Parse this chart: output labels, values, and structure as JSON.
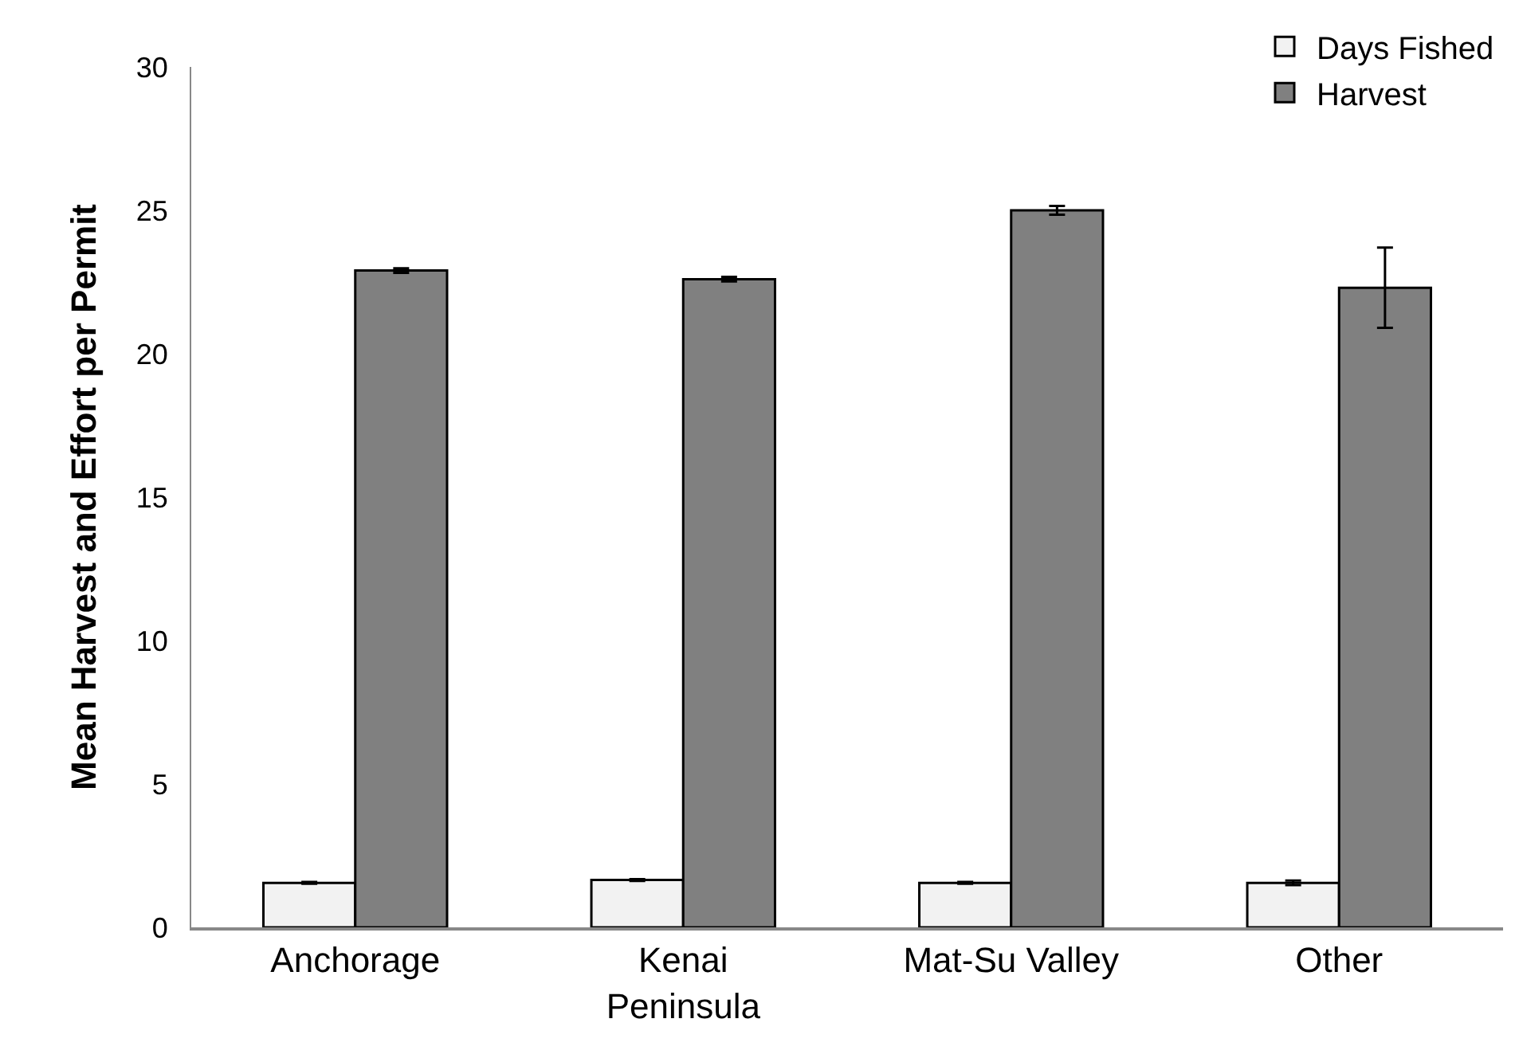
{
  "chart_data": {
    "type": "bar",
    "ylabel": "Mean Harvest and Effort per Permit",
    "categories": [
      "Anchorage",
      "Kenai Peninsula",
      "Mat-Su Valley",
      "Other"
    ],
    "series": [
      {
        "name": "Days Fished",
        "color": "#f2f2f2",
        "values": [
          1.55,
          1.65,
          1.55,
          1.55
        ],
        "errors": [
          0.03,
          0.03,
          0.03,
          0.08
        ]
      },
      {
        "name": "Harvest",
        "color": "#808080",
        "values": [
          22.9,
          22.6,
          25.0,
          22.3
        ],
        "errors": [
          0.08,
          0.08,
          0.15,
          1.4
        ]
      }
    ],
    "ylim": [
      0,
      30
    ],
    "yticks": [
      0,
      5,
      10,
      15,
      20,
      25,
      30
    ],
    "grid": false,
    "legend": "top right"
  }
}
